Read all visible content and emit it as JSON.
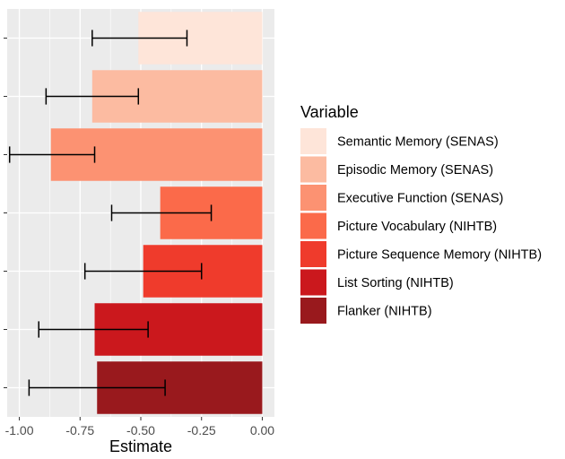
{
  "chart_data": {
    "type": "bar",
    "orientation": "horizontal",
    "xlabel": "Estimate",
    "ylabel": "",
    "xlim": [
      -1.05,
      0.05
    ],
    "x_ticks": [
      -1.0,
      -0.75,
      -0.5,
      -0.25,
      0.0
    ],
    "x_tick_labels": [
      "-1.00",
      "-0.75",
      "-0.50",
      "-0.25",
      "0.00"
    ],
    "grid": true,
    "legend_title": "Variable",
    "legend_position": "right",
    "series": [
      {
        "name": "Semantic Memory (SENAS)",
        "value": -0.51,
        "ci_low": -0.7,
        "ci_high": -0.31,
        "color": "#fee5d9"
      },
      {
        "name": "Episodic Memory (SENAS)",
        "value": -0.7,
        "ci_low": -0.89,
        "ci_high": -0.51,
        "color": "#fcbba1"
      },
      {
        "name": "Executive Function (SENAS)",
        "value": -0.87,
        "ci_low": -1.04,
        "ci_high": -0.69,
        "color": "#fc9272"
      },
      {
        "name": "Picture Vocabulary (NIHTB)",
        "value": -0.42,
        "ci_low": -0.62,
        "ci_high": -0.21,
        "color": "#fb6a4a"
      },
      {
        "name": "Picture Sequence Memory (NIHTB)",
        "value": -0.49,
        "ci_low": -0.73,
        "ci_high": -0.25,
        "color": "#ef3b2c"
      },
      {
        "name": "List Sorting (NIHTB)",
        "value": -0.69,
        "ci_low": -0.92,
        "ci_high": -0.47,
        "color": "#cb181d"
      },
      {
        "name": "Flanker (NIHTB)",
        "value": -0.68,
        "ci_low": -0.96,
        "ci_high": -0.4,
        "color": "#99191d"
      }
    ]
  }
}
